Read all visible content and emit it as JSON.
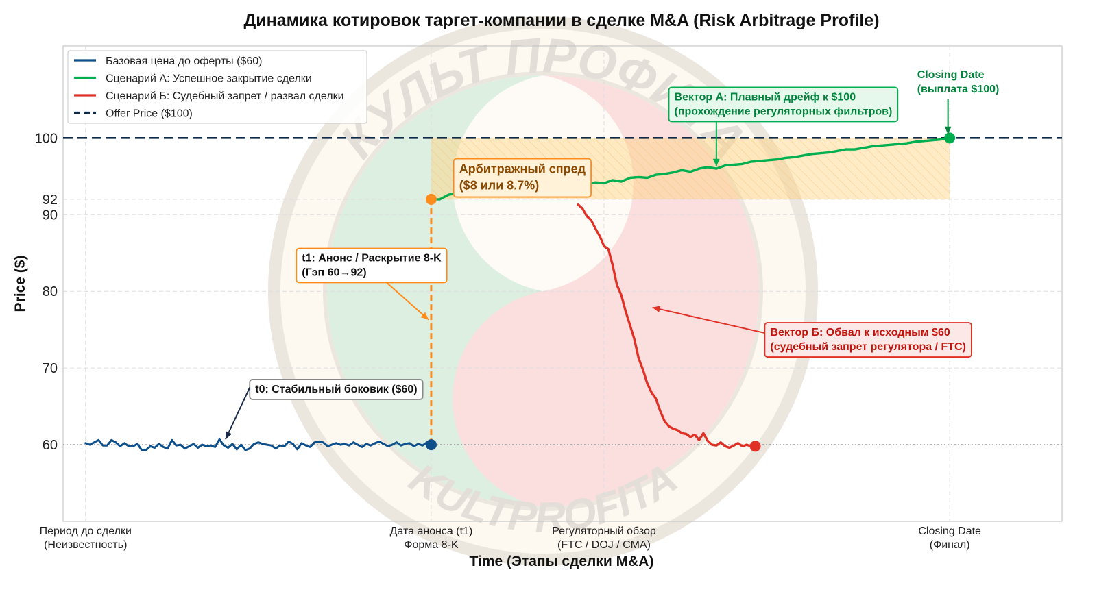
{
  "chart_data": {
    "type": "line",
    "title": "Динамика котировок таргет-компании в сделке M&A (Risk Arbitrage Profile)",
    "xlabel": "Time (Этапы сделки M&A)",
    "ylabel": "Price ($)",
    "ylim": [
      50,
      112
    ],
    "grid": true,
    "legend_position": "top-left",
    "x_ticks": [
      {
        "x": 0,
        "line1": "Период до сделки",
        "line2": "(Неизвестность)"
      },
      {
        "x": 40,
        "line1": "Дата анонса (t1)",
        "line2": "Форма 8-K"
      },
      {
        "x": 60,
        "line1": "Регуляторный обзор",
        "line2": "(FTC / DOJ / CMA)"
      },
      {
        "x": 100,
        "line1": "Closing Date",
        "line2": "(Финал)"
      }
    ],
    "y_ticks": [
      60,
      70,
      80,
      90,
      92,
      100
    ],
    "xlim": [
      -2.6,
      113
    ],
    "series": [
      {
        "name": "Базовая цена до оферты ($60)",
        "color": "#0d4f8b",
        "x": [
          0,
          0.5,
          1,
          1.5,
          2,
          2.5,
          3,
          3.5,
          4,
          4.5,
          5,
          5.5,
          6,
          6.5,
          7,
          7.5,
          8,
          8.5,
          9,
          9.5,
          10,
          10.5,
          11,
          11.5,
          12,
          12.5,
          13,
          13.5,
          14,
          14.5,
          15,
          15.5,
          16,
          16.5,
          17,
          17.5,
          18,
          18.5,
          19,
          19.5,
          20,
          20.5,
          21,
          21.5,
          22,
          22.5,
          23,
          23.5,
          24,
          24.5,
          25,
          25.5,
          26,
          26.5,
          27,
          27.5,
          28,
          28.5,
          29,
          29.5,
          30,
          30.5,
          31,
          31.5,
          32,
          32.5,
          33,
          33.5,
          34,
          34.5,
          35,
          35.5,
          36,
          36.5,
          37,
          37.5,
          38,
          38.5,
          39,
          39.5,
          40
        ],
        "values": [
          60.2,
          60.0,
          60.3,
          60.6,
          59.9,
          59.9,
          60.6,
          60.3,
          59.8,
          60.2,
          59.8,
          59.8,
          60.1,
          59.3,
          59.3,
          59.8,
          59.6,
          60.1,
          59.7,
          59.5,
          60.6,
          59.9,
          60.0,
          59.5,
          59.8,
          60.1,
          59.6,
          60.0,
          59.8,
          59.9,
          59.7,
          60.7,
          59.9,
          59.6,
          60.1,
          59.4,
          60.0,
          59.3,
          59.5,
          60.1,
          60.3,
          60.1,
          60.0,
          59.9,
          59.5,
          59.9,
          59.8,
          60.4,
          60.1,
          59.4,
          60.2,
          59.9,
          59.7,
          60.3,
          60.4,
          60.3,
          59.8,
          60.0,
          60.2,
          60.0,
          60.1,
          59.9,
          60.3,
          60.0,
          59.7,
          60.1,
          59.9,
          60.2,
          60.4,
          60.1,
          59.8,
          60.0,
          60.3,
          59.9,
          60.1,
          60.2,
          59.8,
          60.1,
          59.9,
          60.3,
          60.0
        ]
      },
      {
        "name": "Сценарий А: Успешное закрытие сделки",
        "color": "#00b050",
        "x": [
          40,
          41,
          42,
          43,
          44,
          45,
          46,
          47,
          48,
          49,
          50,
          51,
          52,
          53,
          54,
          55,
          56,
          57,
          58,
          59,
          60,
          61,
          62,
          63,
          64,
          65,
          66,
          67,
          68,
          69,
          70,
          71,
          72,
          73,
          74,
          75,
          76,
          77,
          78,
          79,
          80,
          81,
          82,
          83,
          84,
          85,
          86,
          87,
          88,
          89,
          90,
          91,
          92,
          93,
          94,
          95,
          96,
          97,
          98,
          99,
          100
        ],
        "values": [
          92.0,
          92.0,
          92.6,
          92.8,
          92.5,
          92.9,
          92.6,
          93.2,
          92.8,
          93.3,
          92.4,
          93.2,
          93.1,
          93.4,
          93.8,
          93.6,
          93.7,
          93.9,
          93.9,
          94.2,
          94.1,
          94.5,
          94.3,
          94.8,
          94.9,
          94.8,
          95.2,
          95.3,
          95.5,
          95.8,
          95.6,
          96.0,
          96.2,
          96.0,
          96.4,
          96.5,
          96.6,
          96.9,
          97.0,
          97.1,
          97.2,
          97.4,
          97.5,
          97.7,
          97.9,
          98.0,
          98.1,
          98.3,
          98.5,
          98.5,
          98.7,
          98.9,
          99.0,
          99.1,
          99.2,
          99.3,
          99.5,
          99.6,
          99.7,
          99.8,
          100.0
        ]
      },
      {
        "name": "Сценарий Б: Судебный запрет / развал сделки",
        "color": "#e03127",
        "x": [
          57,
          57.5,
          58,
          58.5,
          59,
          59.5,
          60,
          60.5,
          61,
          61.5,
          62,
          62.5,
          63,
          63.5,
          64,
          64.5,
          65,
          65.5,
          66,
          66.5,
          67,
          67.5,
          68,
          68.5,
          69,
          69.5,
          70,
          70.5,
          71,
          71.5,
          72,
          72.5,
          73,
          73.5,
          74,
          74.5,
          75,
          75.5,
          76,
          76.5,
          77
        ],
        "values": [
          91.3,
          90.8,
          89.8,
          89.3,
          88.2,
          87.2,
          85.9,
          85.5,
          83.4,
          80.8,
          79.5,
          77.4,
          75.6,
          73.8,
          71.3,
          69.8,
          68.0,
          66.8,
          66.0,
          64.4,
          63.1,
          62.4,
          62.1,
          61.9,
          61.5,
          61.4,
          61.0,
          61.3,
          60.6,
          61.5,
          60.5,
          60.0,
          59.9,
          60.3,
          59.8,
          59.6,
          59.9,
          60.2,
          59.8,
          60.0,
          59.8
        ]
      }
    ],
    "offer_price": {
      "name": "Offer Price ($100)",
      "value": 100,
      "color": "#0f2a47"
    },
    "baseline_reference": 60,
    "markers": [
      {
        "name": "t0 end",
        "x": 40,
        "y": 60,
        "color": "#0d4f8b"
      },
      {
        "name": "announcement",
        "x": 40,
        "y": 92,
        "color": "#ff8c1a"
      },
      {
        "name": "closing",
        "x": 100,
        "y": 100,
        "color": "#00b050"
      },
      {
        "name": "collapse",
        "x": 77.5,
        "y": 59.8,
        "color": "#e03127"
      }
    ],
    "gap": {
      "x": 40,
      "from": 60,
      "to": 92,
      "color": "#ff8c1a"
    },
    "spread_region": {
      "x_from": 40,
      "x_to": 100,
      "y_from": 92,
      "y_to": 100,
      "color": "#ffd27f"
    },
    "annotations": [
      {
        "id": "t0",
        "text": [
          "t0: Стабильный боковик ($60)"
        ],
        "text_x": 19,
        "text_y": 68.5,
        "arrow_to": [
          16.2,
          60.7
        ],
        "text_color": "#111111",
        "border": "#888888",
        "bg": "#ffffff",
        "size": "normal"
      },
      {
        "id": "t1",
        "text": [
          "t1: Анонс / Раскрытие 8-K",
          "(Гэп 60→92)"
        ],
        "text_x": 24.4,
        "text_y": 85.6,
        "arrow_to": [
          39.7,
          76.3
        ],
        "text_color": "#111111",
        "border": "#ff8c1a",
        "bg": "#ffffff",
        "size": "normal"
      },
      {
        "id": "spread",
        "text": [
          "Арбитражный спред",
          "($8 или 8.7%)"
        ],
        "text_x": 42.6,
        "text_y": 97.3,
        "arrow_to": null,
        "text_color": "#8b4a00",
        "border": "#ff8c1a",
        "bg": "#fff2d9",
        "size": "big"
      },
      {
        "id": "vecA",
        "text": [
          "Вектор А: Плавный дрейф к $100",
          "(прохождение регуляторных фильтров)"
        ],
        "text_x": 67.5,
        "text_y": 106.6,
        "arrow_to": [
          73.0,
          96.3
        ],
        "text_color": "#00843d",
        "border": "#00b050",
        "bg": "#e6f7ec",
        "size": "normal"
      },
      {
        "id": "closing",
        "text": [
          "Closing Date",
          "(выплата $100)"
        ],
        "text_x": 95.6,
        "text_y": 109.5,
        "arrow_to": [
          99.8,
          100.5
        ],
        "text_color": "#00843d",
        "border": null,
        "bg": null,
        "size": "normal"
      },
      {
        "id": "vecB",
        "text": [
          "Вектор Б: Обвал к исходным $60",
          "(судебный запрет регулятора / FTC)"
        ],
        "text_x": 78.6,
        "text_y": 75.9,
        "arrow_to": [
          65.6,
          77.9
        ],
        "text_color": "#c0150d",
        "border": "#e03127",
        "bg": "#fde8e8",
        "size": "normal"
      }
    ]
  },
  "legend": {
    "items": [
      {
        "label": "Базовая цена до оферты ($60)",
        "color": "#0d4f8b",
        "style": "solid"
      },
      {
        "label": "Сценарий А: Успешное закрытие сделки",
        "color": "#00b050",
        "style": "solid"
      },
      {
        "label": "Сценарий Б: Судебный запрет / развал сделки",
        "color": "#e03127",
        "style": "solid"
      },
      {
        "label": "Offer Price ($100)",
        "color": "#0f2a47",
        "style": "dashed"
      }
    ]
  },
  "watermark": {
    "top_text": "КУЛЬТ ПРОФИТА",
    "bottom_text": "KULTPROFITA"
  }
}
